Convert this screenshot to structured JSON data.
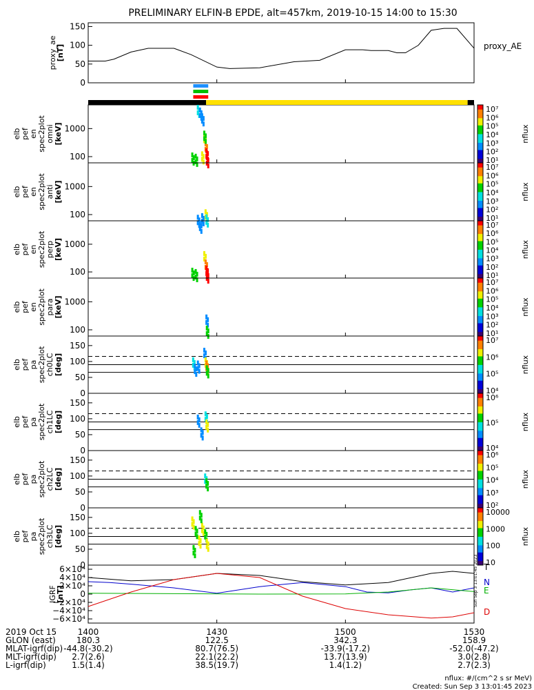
{
  "title": "PRELIMINARY ELFIN-B EPDE, alt=457km, 2019-10-15 14:00 to 15:30",
  "colors": {
    "axis": "#000000",
    "sat_bar_dark": "#000000",
    "sat_bar_light": "#ffe000",
    "marker_colors": [
      "#1e90ff",
      "#00c000",
      "#ff0000"
    ],
    "igrf_colors": {
      "T": "#000000",
      "N": "#0000cc",
      "E": "#00b000",
      "D": "#dd0000"
    }
  },
  "chart_data": [
    {
      "type": "line",
      "panel": "proxy_ae",
      "ylabel": [
        "proxy_ae",
        "[nT]"
      ],
      "legend": "proxy_AE",
      "ylim": [
        0,
        160
      ],
      "yticks": [
        "0",
        "50",
        "100",
        "150"
      ],
      "yticks_v": [
        0,
        50,
        100,
        150
      ],
      "x": [
        0,
        4,
        6,
        10,
        14,
        20,
        24,
        30,
        33,
        40,
        48,
        54,
        60,
        64,
        66,
        70,
        72,
        74,
        77,
        80,
        83,
        86,
        90
      ],
      "y": [
        58,
        58,
        63,
        82,
        92,
        92,
        75,
        42,
        38,
        40,
        56,
        60,
        88,
        88,
        86,
        86,
        80,
        80,
        100,
        140,
        145,
        145,
        92
      ]
    },
    {
      "type": "heatmap",
      "panel": "omni",
      "ylabel": [
        "elb",
        "pef",
        "en",
        "spec2plot",
        "omni",
        "[keV]"
      ],
      "yscale": "log",
      "ylim": [
        60,
        7000
      ],
      "yticks": [
        "100",
        "1000"
      ],
      "yticks_v": [
        100,
        1000
      ],
      "zlabel": "nflux",
      "zticks": [
        "10¹",
        "10²",
        "10³",
        "10⁴",
        "10⁵",
        "10⁶",
        "10⁷"
      ],
      "cells": [
        [
          25.5,
          5000,
          3
        ],
        [
          26.0,
          4000,
          2
        ],
        [
          26.5,
          2500,
          2
        ],
        [
          27.0,
          500,
          5
        ],
        [
          27.3,
          250,
          6
        ],
        [
          27.5,
          140,
          7
        ],
        [
          26.5,
          110,
          5
        ],
        [
          24.2,
          100,
          4
        ],
        [
          25.0,
          90,
          4
        ],
        [
          27.6,
          80,
          7
        ],
        [
          27.0,
          600,
          4
        ]
      ]
    },
    {
      "type": "heatmap",
      "panel": "anti",
      "ylabel": [
        "elb",
        "pef",
        "en",
        "spec2plot",
        "anti",
        "[keV]"
      ],
      "yscale": "log",
      "ylim": [
        60,
        7000
      ],
      "yticks": [
        "100",
        "1000"
      ],
      "yticks_v": [
        100,
        1000
      ],
      "zlabel": "nflux",
      "zticks": [
        "10¹",
        "10²",
        "10³",
        "10⁴",
        "10⁵",
        "10⁶",
        "10⁷"
      ],
      "cells": [
        [
          27.3,
          110,
          5
        ],
        [
          26.5,
          80,
          2
        ],
        [
          25.5,
          70,
          2
        ],
        [
          27.5,
          72,
          3
        ]
      ]
    },
    {
      "type": "heatmap",
      "panel": "perp",
      "ylabel": [
        "elb",
        "pef",
        "en",
        "spec2plot",
        "perp",
        "[keV]"
      ],
      "yscale": "log",
      "ylim": [
        60,
        7000
      ],
      "yticks": [
        "100",
        "1000"
      ],
      "yticks_v": [
        100,
        1000
      ],
      "zlabel": "nflux",
      "zticks": [
        "10¹",
        "10²",
        "10³",
        "10⁴",
        "10⁵",
        "10⁶",
        "10⁷"
      ],
      "cells": [
        [
          26.0,
          5000,
          2
        ],
        [
          27.0,
          400,
          5
        ],
        [
          27.3,
          200,
          6
        ],
        [
          27.5,
          120,
          7
        ],
        [
          24.2,
          100,
          4
        ],
        [
          25.0,
          90,
          4
        ],
        [
          27.6,
          80,
          7
        ]
      ]
    },
    {
      "type": "heatmap",
      "panel": "para",
      "ylabel": [
        "elb",
        "pef",
        "en",
        "spec2plot",
        "para",
        "[keV]"
      ],
      "yscale": "log",
      "ylim": [
        60,
        7000
      ],
      "yticks": [
        "100",
        "1000"
      ],
      "yticks_v": [
        100,
        1000
      ],
      "zlabel": "nflux",
      "zticks": [
        "10¹",
        "10²",
        "10³",
        "10⁴",
        "10⁵",
        "10⁶",
        "10⁷"
      ],
      "cells": [
        [
          27.5,
          250,
          2
        ],
        [
          27.6,
          100,
          4
        ]
      ]
    },
    {
      "type": "heatmap",
      "panel": "ch0LC",
      "ylabel": [
        "elb",
        "pef",
        "pa",
        "spec2plot",
        "ch0LC",
        "[deg]"
      ],
      "ylim": [
        0,
        180
      ],
      "yticks": [
        "0",
        "50",
        "100",
        "150"
      ],
      "yticks_v": [
        0,
        50,
        100,
        150
      ],
      "zlabel": "nflux",
      "zticks": [
        "10⁴",
        "10⁵",
        "10⁶",
        "10⁷"
      ],
      "lc_dash": 116,
      "lc_solid": [
        90,
        66
      ],
      "cells": [
        [
          24.4,
          100,
          3
        ],
        [
          24.8,
          80,
          2
        ],
        [
          25.5,
          90,
          2
        ],
        [
          27.0,
          130,
          2
        ],
        [
          27.3,
          100,
          5
        ],
        [
          27.5,
          90,
          6
        ],
        [
          27.6,
          75,
          4
        ]
      ]
    },
    {
      "type": "heatmap",
      "panel": "ch1LC",
      "ylabel": [
        "elb",
        "pef",
        "pa",
        "spec2plot",
        "ch1LC",
        "[deg]"
      ],
      "ylim": [
        0,
        180
      ],
      "yticks": [
        "0",
        "50",
        "100",
        "150"
      ],
      "yticks_v": [
        0,
        50,
        100,
        150
      ],
      "zlabel": "nflux",
      "zticks": [
        "10⁴",
        "10⁵",
        "10⁶"
      ],
      "lc_dash": 116,
      "lc_solid": [
        90,
        66
      ],
      "cells": [
        [
          27.3,
          110,
          3
        ],
        [
          27.5,
          85,
          5
        ],
        [
          26.3,
          60,
          2
        ],
        [
          25.5,
          100,
          2
        ]
      ]
    },
    {
      "type": "heatmap",
      "panel": "ch2LC",
      "ylabel": [
        "elb",
        "pef",
        "pa",
        "spec2plot",
        "ch2LC",
        "[deg]"
      ],
      "ylim": [
        0,
        180
      ],
      "yticks": [
        "0",
        "50",
        "100",
        "150"
      ],
      "yticks_v": [
        0,
        50,
        100,
        150
      ],
      "zlabel": "nflux",
      "zticks": [
        "10²",
        "10³",
        "10⁴",
        "10⁵",
        "10⁶"
      ],
      "lc_dash": 116,
      "lc_solid": [
        90,
        66
      ],
      "cells": [
        [
          27.2,
          95,
          3
        ],
        [
          27.5,
          80,
          4
        ]
      ]
    },
    {
      "type": "heatmap",
      "panel": "ch3LC",
      "ylabel": [
        "elb",
        "pef",
        "pa",
        "spec2plot",
        "ch3LC",
        "[deg]"
      ],
      "ylim": [
        0,
        180
      ],
      "yticks": [
        "0",
        "50",
        "100",
        "150"
      ],
      "yticks_v": [
        0,
        50,
        100,
        150
      ],
      "zlabel": "nflux",
      "zticks": [
        "10",
        "100",
        "1000",
        "10000"
      ],
      "lc_dash": 116,
      "lc_solid": [
        90,
        66
      ],
      "cells": [
        [
          24.2,
          140,
          5
        ],
        [
          25.0,
          110,
          4
        ],
        [
          25.8,
          80,
          5
        ],
        [
          26.5,
          120,
          5
        ],
        [
          27.2,
          100,
          4
        ],
        [
          27.6,
          70,
          5
        ],
        [
          24.5,
          50,
          4
        ],
        [
          26.0,
          160,
          4
        ]
      ]
    },
    {
      "type": "line",
      "panel": "IGRF",
      "ylabel": [
        "IGRF",
        "[nT]"
      ],
      "ylim": [
        -70000,
        70000
      ],
      "yticks": [
        "6×10⁴",
        "4×10⁴",
        "2×10⁴",
        "0",
        "−2×10⁴",
        "−4×10⁴",
        "−6×10⁴"
      ],
      "yticks_v": [
        60000,
        40000,
        20000,
        0,
        -20000,
        -40000,
        -60000
      ],
      "series": [
        {
          "name": "T",
          "x": [
            0,
            10,
            20,
            30,
            40,
            50,
            60,
            70,
            80,
            85,
            90
          ],
          "y": [
            40000,
            32000,
            35000,
            50000,
            45000,
            30000,
            22000,
            28000,
            50000,
            55000,
            50000
          ]
        },
        {
          "name": "N",
          "x": [
            0,
            5,
            10,
            20,
            30,
            40,
            50,
            60,
            65,
            70,
            75,
            80,
            85,
            90
          ],
          "y": [
            30000,
            28000,
            24000,
            15000,
            2000,
            18000,
            28000,
            18000,
            5000,
            3000,
            10000,
            15000,
            5000,
            15000
          ]
        },
        {
          "name": "E",
          "x": [
            0,
            20,
            40,
            60,
            70,
            80,
            90
          ],
          "y": [
            2000,
            1000,
            0,
            500,
            5000,
            15000,
            6000
          ]
        },
        {
          "name": "D",
          "x": [
            0,
            10,
            20,
            30,
            40,
            50,
            60,
            70,
            80,
            85,
            90
          ],
          "y": [
            -30000,
            5000,
            35000,
            50000,
            40000,
            -5000,
            -35000,
            -50000,
            -58000,
            -55000,
            -45000
          ]
        }
      ]
    }
  ],
  "xaxis": {
    "row_labels": [
      "2019 Oct 15",
      "GLON (east)",
      "MLAT-igrf(dip)",
      "MLT-igrf(dip)",
      "L-igrf(dip)"
    ],
    "ticks_v": [
      0,
      30,
      60,
      90
    ],
    "columns": [
      [
        "1400",
        "180.3",
        "-44.8(-30.2)",
        "2.7(2.6)",
        "1.5(1.4)"
      ],
      [
        "1430",
        "122.5",
        "80.7(76.5)",
        "22.1(22.2)",
        "38.5(19.7)"
      ],
      [
        "1500",
        "342.3",
        "-33.9(-17.2)",
        "13.7(13.9)",
        "1.4(1.2)"
      ],
      [
        "1530",
        "158.9",
        "-52.0(-47.2)",
        "3.0(2.8)",
        "2.7(2.3)"
      ]
    ]
  },
  "footer": {
    "units": "nflux: #/(cm^2 s sr MeV)",
    "created": "Created: Sun Sep  3 13:01:45 2023",
    "rotated": "Sun Sep  3 13:01:45 2023"
  },
  "sat_bar": {
    "dark_until": 27.5,
    "light_until": 88.5
  },
  "markers": {
    "x": [
      24.5,
      28.0
    ]
  }
}
